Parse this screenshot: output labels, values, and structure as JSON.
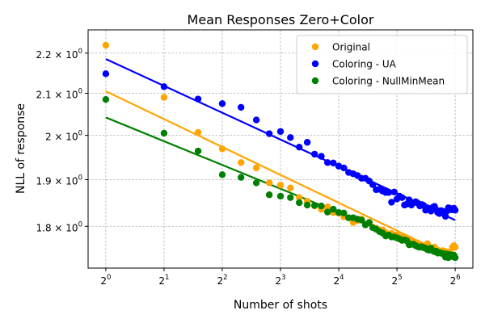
{
  "chart_data": {
    "type": "scatter",
    "title": "Mean Responses Zero+Color",
    "xlabel": "Number of shots",
    "ylabel": "NLL of response",
    "x_scale": "log2",
    "y_scale": "log",
    "xlim": [
      0.81,
      79
    ],
    "ylim": [
      1.715,
      2.26
    ],
    "x_ticks": [
      {
        "value": 1,
        "base": "2",
        "exp": "0"
      },
      {
        "value": 2,
        "base": "2",
        "exp": "1"
      },
      {
        "value": 4,
        "base": "2",
        "exp": "2"
      },
      {
        "value": 8,
        "base": "2",
        "exp": "3"
      },
      {
        "value": 16,
        "base": "2",
        "exp": "4"
      },
      {
        "value": 32,
        "base": "2",
        "exp": "5"
      },
      {
        "value": 64,
        "base": "2",
        "exp": "6"
      }
    ],
    "y_ticks": [
      {
        "value": 1.8,
        "base": "1.8 × 10",
        "exp": "0"
      },
      {
        "value": 1.9,
        "base": "1.9 × 10",
        "exp": "0"
      },
      {
        "value": 2.0,
        "base": "2 × 10",
        "exp": "0"
      },
      {
        "value": 2.1,
        "base": "2.1 × 10",
        "exp": "0"
      },
      {
        "value": 2.2,
        "base": "2.2 × 10",
        "exp": "0"
      }
    ],
    "grid": true,
    "legend_position": "top-right",
    "series": [
      {
        "name": "Original",
        "color": "#ffa500",
        "x": [
          1,
          2,
          3,
          4,
          5,
          6,
          7,
          8,
          9,
          10,
          11,
          12,
          13,
          14,
          15,
          16,
          17,
          18,
          19,
          20,
          21,
          22,
          23,
          24,
          25,
          26,
          27,
          28,
          29,
          30,
          31,
          32,
          33,
          34,
          35,
          36,
          37,
          38,
          39,
          40,
          41,
          42,
          43,
          44,
          45,
          46,
          47,
          48,
          49,
          50,
          51,
          52,
          53,
          54,
          55,
          56,
          57,
          58,
          59,
          60,
          61,
          62,
          63,
          64
        ],
        "y": [
          2.22,
          2.09,
          2.007,
          1.969,
          1.938,
          1.926,
          1.893,
          1.888,
          1.882,
          1.861,
          1.853,
          1.843,
          1.836,
          1.841,
          1.829,
          1.828,
          1.82,
          1.818,
          1.808,
          1.812,
          1.815,
          1.805,
          1.808,
          1.798,
          1.796,
          1.792,
          1.792,
          1.787,
          1.783,
          1.785,
          1.782,
          1.782,
          1.774,
          1.778,
          1.775,
          1.772,
          1.771,
          1.765,
          1.767,
          1.764,
          1.763,
          1.761,
          1.758,
          1.758,
          1.759,
          1.764,
          1.756,
          1.753,
          1.755,
          1.757,
          1.752,
          1.751,
          1.749,
          1.748,
          1.75,
          1.749,
          1.748,
          1.746,
          1.747,
          1.745,
          1.744,
          1.757,
          1.76,
          1.757
        ],
        "fit": [
          2.105,
          1.734
        ]
      },
      {
        "name": "Coloring - UA",
        "color": "#0000ff",
        "x": [
          1,
          2,
          3,
          4,
          5,
          6,
          7,
          8,
          9,
          10,
          11,
          12,
          13,
          14,
          15,
          16,
          17,
          18,
          19,
          20,
          21,
          22,
          23,
          24,
          25,
          26,
          27,
          28,
          29,
          30,
          31,
          32,
          33,
          34,
          35,
          36,
          37,
          38,
          39,
          40,
          41,
          42,
          43,
          44,
          45,
          46,
          47,
          48,
          49,
          50,
          51,
          52,
          53,
          54,
          55,
          56,
          57,
          58,
          59,
          60,
          61,
          62,
          63,
          64
        ],
        "y": [
          2.148,
          2.116,
          2.086,
          2.075,
          2.066,
          2.036,
          2.004,
          2.009,
          1.995,
          1.973,
          1.984,
          1.957,
          1.952,
          1.938,
          1.937,
          1.93,
          1.926,
          1.916,
          1.913,
          1.909,
          1.903,
          1.903,
          1.897,
          1.889,
          1.878,
          1.879,
          1.875,
          1.872,
          1.872,
          1.851,
          1.873,
          1.858,
          1.864,
          1.861,
          1.845,
          1.847,
          1.856,
          1.845,
          1.85,
          1.852,
          1.849,
          1.843,
          1.846,
          1.844,
          1.834,
          1.839,
          1.836,
          1.832,
          1.84,
          1.842,
          1.835,
          1.829,
          1.827,
          1.833,
          1.832,
          1.827,
          1.821,
          1.832,
          1.839,
          1.838,
          1.835,
          1.835,
          1.838,
          1.834
        ],
        "fit": [
          2.185,
          1.813
        ]
      },
      {
        "name": "Coloring - NullMinMean",
        "color": "#008000",
        "x": [
          1,
          2,
          3,
          4,
          5,
          6,
          7,
          8,
          9,
          10,
          11,
          12,
          13,
          14,
          15,
          16,
          17,
          18,
          19,
          20,
          21,
          22,
          23,
          24,
          25,
          26,
          27,
          28,
          29,
          30,
          31,
          32,
          33,
          34,
          35,
          36,
          37,
          38,
          39,
          40,
          41,
          42,
          43,
          44,
          45,
          46,
          47,
          48,
          49,
          50,
          51,
          52,
          53,
          54,
          55,
          56,
          57,
          58,
          59,
          60,
          61,
          62,
          63,
          64
        ],
        "y": [
          2.085,
          2.005,
          1.964,
          1.911,
          1.905,
          1.893,
          1.867,
          1.864,
          1.861,
          1.85,
          1.845,
          1.844,
          1.843,
          1.83,
          1.836,
          1.829,
          1.828,
          1.818,
          1.818,
          1.815,
          1.813,
          1.803,
          1.808,
          1.797,
          1.794,
          1.789,
          1.786,
          1.78,
          1.782,
          1.778,
          1.778,
          1.776,
          1.774,
          1.771,
          1.772,
          1.77,
          1.762,
          1.763,
          1.763,
          1.76,
          1.758,
          1.757,
          1.758,
          1.756,
          1.755,
          1.752,
          1.751,
          1.755,
          1.75,
          1.748,
          1.749,
          1.745,
          1.746,
          1.745,
          1.744,
          1.744,
          1.737,
          1.743,
          1.736,
          1.742,
          1.741,
          1.74,
          1.741,
          1.736
        ],
        "fit": [
          2.042,
          1.731
        ]
      }
    ]
  }
}
